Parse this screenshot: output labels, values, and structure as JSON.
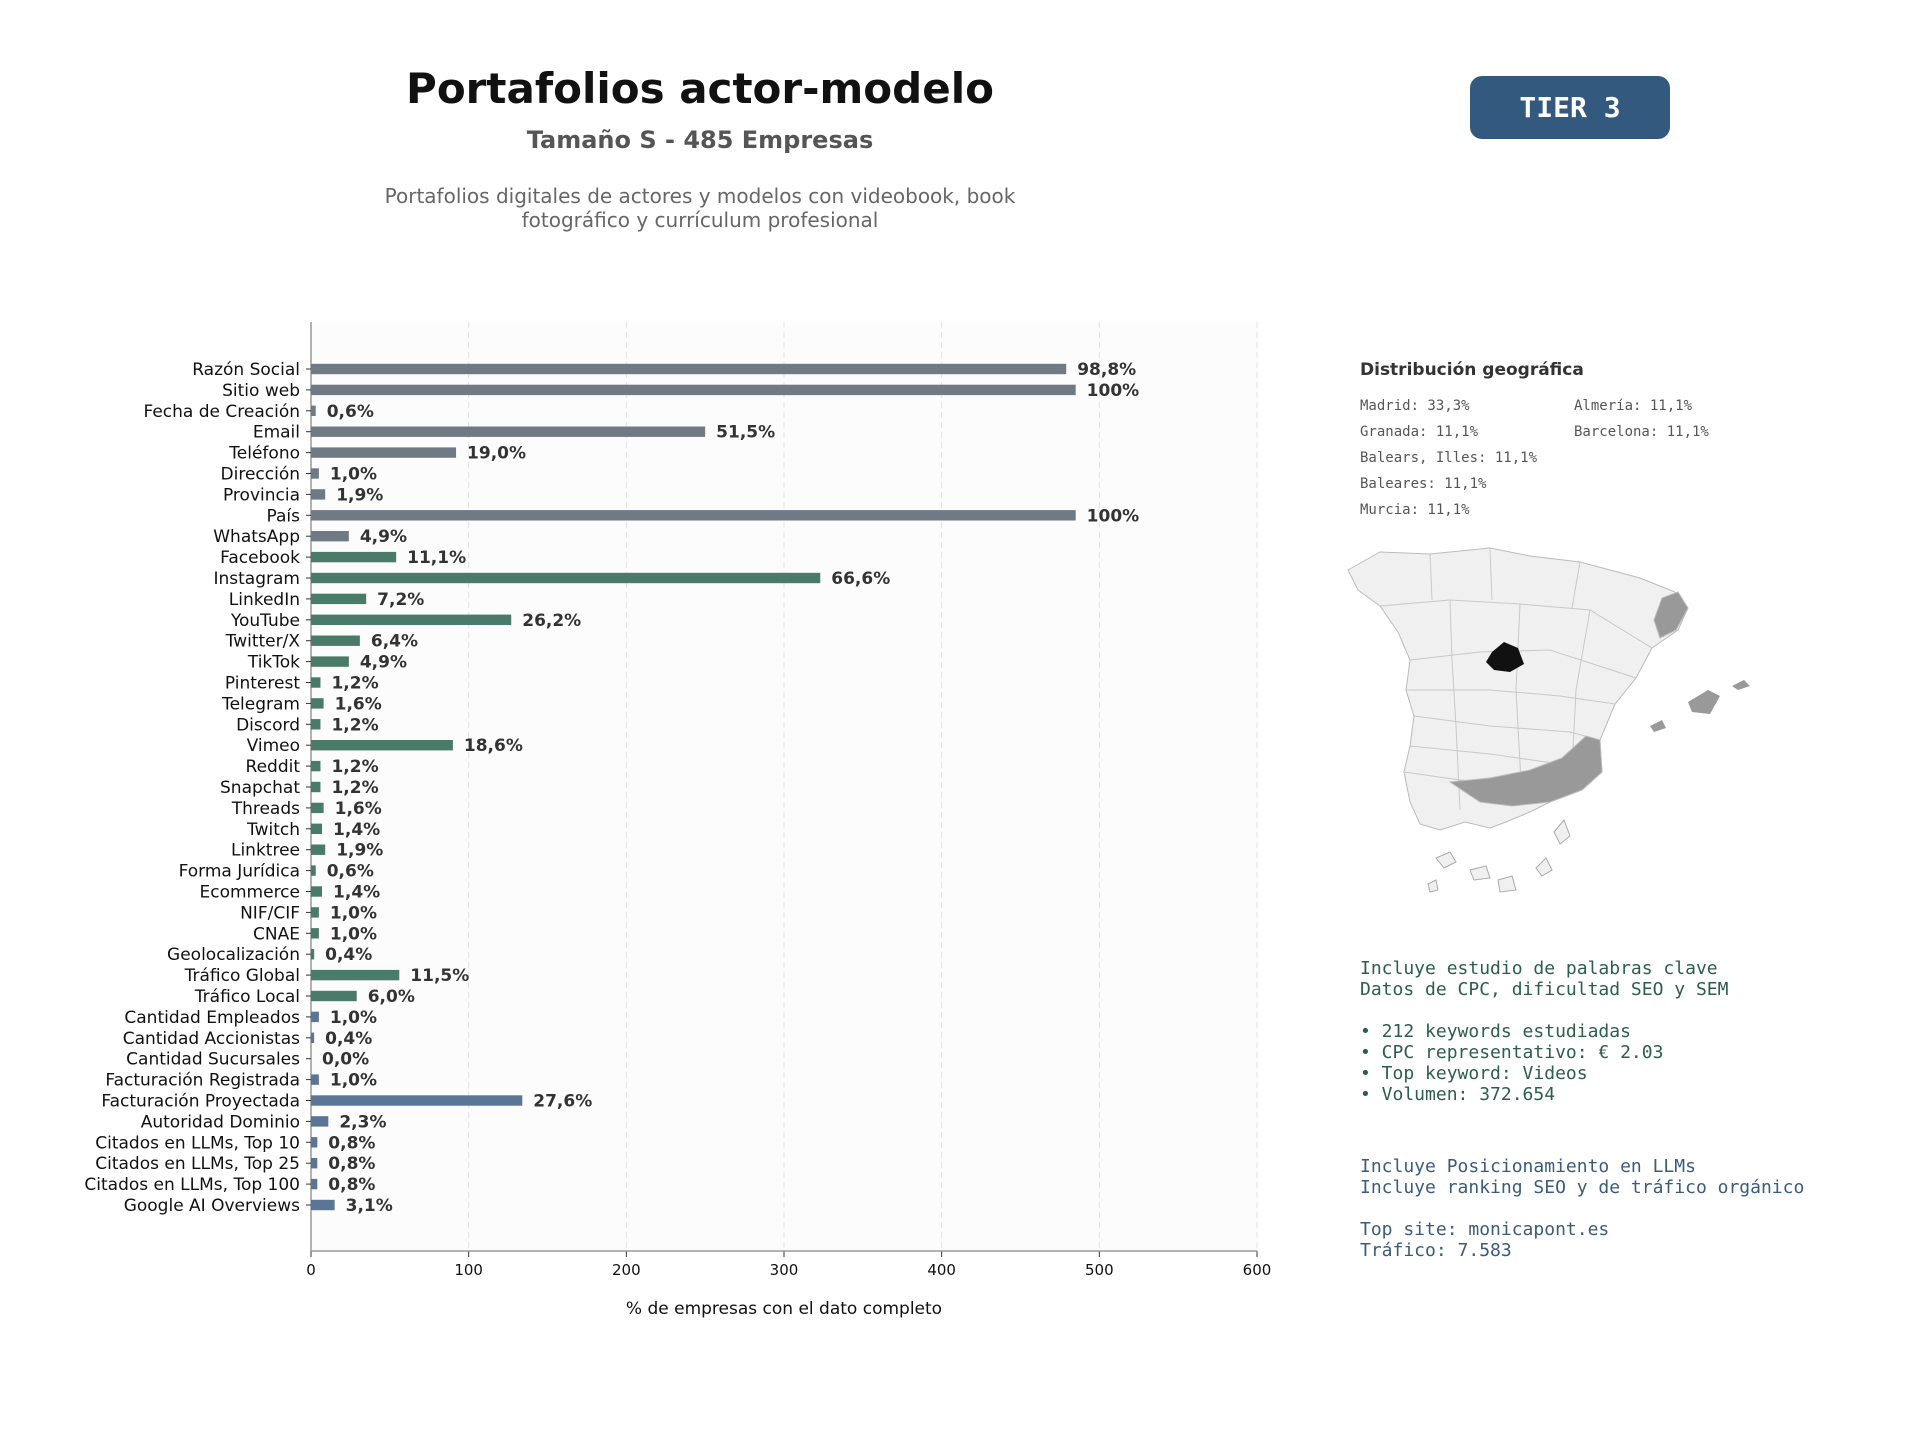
{
  "header": {
    "title": "Portafolios actor-modelo",
    "subtitle": "Tamaño S - 485 Empresas",
    "description_line1": "Portafolios digitales de actores y modelos con videobook, book",
    "description_line2": "fotográfico y currículum profesional",
    "tier": "TIER 3"
  },
  "colors": {
    "gray": "#707a85",
    "green": "#4a7a68",
    "blue": "#5a7595",
    "tier_bg": "#34597f",
    "map_highlight": "#111111",
    "map_mid": "#999999",
    "map_base": "#f0f0f0"
  },
  "chart_data": {
    "type": "bar",
    "orientation": "horizontal",
    "xlabel": "% de empresas con el dato completo",
    "xlim": [
      0,
      600
    ],
    "xticks": [
      0,
      100,
      200,
      300,
      400,
      500,
      600
    ],
    "grid": true,
    "categories": [
      "Razón Social",
      "Sitio web",
      "Fecha de Creación",
      "Email",
      "Teléfono",
      "Dirección",
      "Provincia",
      "País",
      "WhatsApp",
      "Facebook",
      "Instagram",
      "LinkedIn",
      "YouTube",
      "Twitter/X",
      "TikTok",
      "Pinterest",
      "Telegram",
      "Discord",
      "Vimeo",
      "Reddit",
      "Snapchat",
      "Threads",
      "Twitch",
      "Linktree",
      "Forma Jurídica",
      "Ecommerce",
      "NIF/CIF",
      "CNAE",
      "Geolocalización",
      "Tráfico Global",
      "Tráfico Local",
      "Cantidad Empleados",
      "Cantidad Accionistas",
      "Cantidad Sucursales",
      "Facturación Registrada",
      "Facturación Proyectada",
      "Autoridad Dominio",
      "Citados en LLMs, Top 10",
      "Citados en LLMs, Top 25",
      "Citados en LLMs, Top 100",
      "Google AI Overviews"
    ],
    "values": [
      479,
      485,
      3,
      250,
      92,
      5,
      9,
      485,
      24,
      54,
      323,
      35,
      127,
      31,
      24,
      6,
      8,
      6,
      90,
      6,
      6,
      8,
      7,
      9,
      3,
      7,
      5,
      5,
      2,
      56,
      29,
      5,
      2,
      0,
      5,
      134,
      11,
      4,
      4,
      4,
      15
    ],
    "labels": [
      "98,8%",
      "100%",
      "0,6%",
      "51,5%",
      "19,0%",
      "1,0%",
      "1,9%",
      "100%",
      "4,9%",
      "11,1%",
      "66,6%",
      "7,2%",
      "26,2%",
      "6,4%",
      "4,9%",
      "1,2%",
      "1,6%",
      "1,2%",
      "18,6%",
      "1,2%",
      "1,2%",
      "1,6%",
      "1,4%",
      "1,9%",
      "0,6%",
      "1,4%",
      "1,0%",
      "1,0%",
      "0,4%",
      "11,5%",
      "6,0%",
      "1,0%",
      "0,4%",
      "0,0%",
      "1,0%",
      "27,6%",
      "2,3%",
      "0,8%",
      "0,8%",
      "0,8%",
      "3,1%"
    ],
    "groups": [
      "gray",
      "gray",
      "gray",
      "gray",
      "gray",
      "gray",
      "gray",
      "gray",
      "gray",
      "green",
      "green",
      "green",
      "green",
      "green",
      "green",
      "green",
      "green",
      "green",
      "green",
      "green",
      "green",
      "green",
      "green",
      "green",
      "green",
      "green",
      "green",
      "green",
      "green",
      "green",
      "green",
      "blue",
      "blue",
      "blue",
      "blue",
      "blue",
      "blue",
      "blue",
      "blue",
      "blue",
      "blue"
    ]
  },
  "geo": {
    "title": "Distribución geográfica",
    "items": [
      {
        "text": "Madrid: 33,3%"
      },
      {
        "text": "Almería: 11,1%"
      },
      {
        "text": "Granada: 11,1%"
      },
      {
        "text": "Barcelona: 11,1%"
      },
      {
        "text": "Balears, Illes: 11,1%"
      },
      {
        "text": "Baleares: 11,1%"
      },
      {
        "text": "Murcia: 11,1%"
      }
    ]
  },
  "info": {
    "keywords_block": "Incluye estudio de palabras clave\nDatos de CPC, dificultad SEO y SEM\n\n• 212 keywords estudiadas\n• CPC representativo: € 2.03\n• Top keyword: Videos\n• Volumen: 372.654",
    "llm_block": "Incluye Posicionamiento en LLMs\nIncluye ranking SEO y de tráfico orgánico\n\nTop site: monicapont.es\nTráfico: 7.583"
  }
}
